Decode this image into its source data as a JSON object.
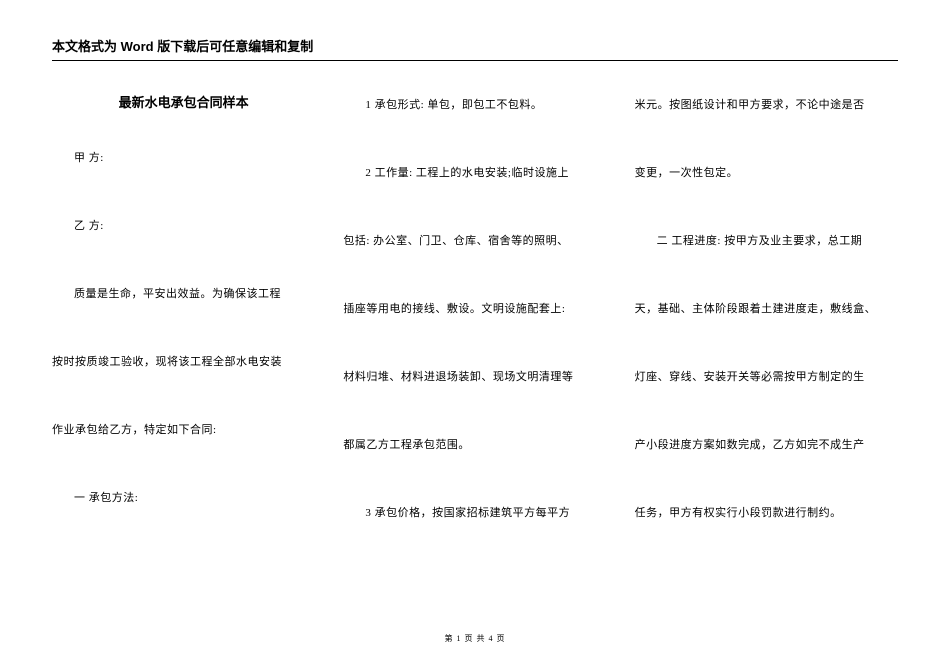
{
  "header": "本文格式为 Word 版下载后可任意编辑和复制",
  "title": "最新水电承包合同样本",
  "column1": {
    "lines": [
      "甲 方:",
      "乙 方:",
      "质量是生命，平安出效益。为确保该工程",
      "按时按质竣工验收，现将该工程全部水电安装",
      "作业承包给乙方，特定如下合同:",
      "一 承包方法:"
    ]
  },
  "column2": {
    "lines": [
      "1 承包形式: 单包，即包工不包料。",
      "2 工作量: 工程上的水电安装;临时设施上",
      "包括: 办公室、门卫、仓库、宿舍等的照明、",
      "插座等用电的接线、敷设。文明设施配套上:",
      "材料归堆、材料进退场装卸、现场文明清理等",
      "都属乙方工程承包范围。",
      "3 承包价格，按国家招标建筑平方每平方"
    ]
  },
  "column3": {
    "lines": [
      "米元。按图纸设计和甲方要求，不论中途是否",
      "变更，一次性包定。",
      "二 工程进度: 按甲方及业主要求，总工期",
      "天，基础、主体阶段跟着土建进度走，敷线盒、",
      "灯座、穿线、安装开关等必需按甲方制定的生",
      "产小段进度方案如数完成，乙方如完不成生产",
      "任务，甲方有权实行小段罚款进行制约。"
    ]
  },
  "footer": "第 1 页 共 4 页"
}
